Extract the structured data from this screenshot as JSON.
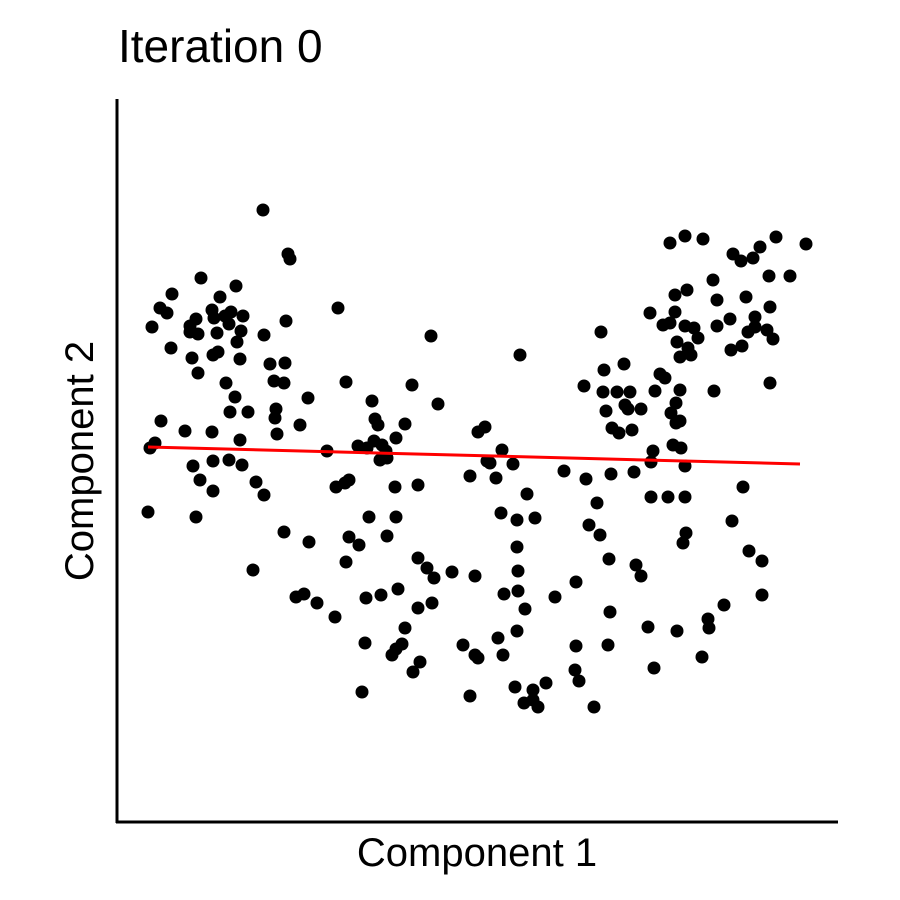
{
  "chart_data": {
    "type": "scatter",
    "title": "Iteration 0",
    "x_label": "Component 1",
    "y_label": "Component 2",
    "xlim": [
      0,
      720
    ],
    "ylim": [
      0,
      722
    ],
    "series": [
      {
        "type": "scatter",
        "color": "#000000",
        "x": [
          146,
          171,
          173,
          84,
          119,
          55,
          43,
          50,
          103,
          35,
          73,
          79,
          97,
          108,
          114,
          126,
          112,
          124,
          81,
          73,
          100,
          120,
          147,
          169,
          54,
          75,
          96,
          101,
          123,
          153,
          168,
          81,
          109,
          157,
          167,
          118,
          191,
          44,
          68,
          113,
          131,
          159,
          158,
          183,
          38,
          95,
          123,
          160,
          76,
          96,
          112,
          125,
          83,
          96,
          139,
          147,
          31,
          79,
          136,
          167,
          192,
          179,
          187,
          200,
          218,
          221,
          229,
          314,
          295,
          321,
          255,
          258,
          261,
          288,
          210,
          241,
          250,
          265,
          257,
          269,
          279,
          263,
          270,
          219,
          228,
          232,
          278,
          301,
          252,
          279,
          232,
          242,
          270,
          229,
          301,
          310,
          317,
          335,
          358,
          249,
          264,
          281,
          301,
          315,
          248,
          288,
          275,
          279,
          285,
          296,
          303,
          245,
          346,
          358,
          361,
          381,
          353,
          400,
          386,
          403,
          361,
          368,
          385,
          370,
          373,
          353,
          379,
          396,
          410,
          384,
          400,
          418,
          400,
          401,
          387,
          401,
          438,
          459,
          408,
          398,
          429,
          416,
          407,
          421,
          416,
          458,
          462,
          477,
          459,
          493,
          491,
          447,
          469,
          480,
          472,
          483,
          492,
          519,
          524,
          531,
          537,
          560,
          585,
          592,
          591,
          607,
          645,
          645,
          632,
          615,
          626,
          566,
          569,
          568,
          551,
          534,
          517,
          494,
          534,
          536,
          568,
          564,
          556,
          559,
          563,
          554,
          559,
          563,
          543,
          548,
          538,
          524,
          511,
          515,
          502,
          495,
          489,
          508,
          500,
          513,
          486,
          487,
          507,
          467,
          484,
          597,
          653,
          656,
          650,
          638,
          631,
          625,
          614,
          600,
          613,
          638,
          653,
          629,
          600,
          596,
          577,
          568,
          553,
          546,
          560,
          563,
          571,
          574,
          581,
          558,
          533,
          558,
          570,
          652,
          673,
          616,
          624,
          636,
          643,
          659,
          689,
          553,
          568,
          586,
          33,
          95
        ],
        "y": [
          612,
          568,
          563,
          544,
          536,
          528,
          514,
          509,
          525,
          495,
          496,
          503,
          504,
          506,
          510,
          506,
          498,
          491,
          488,
          490,
          489,
          480,
          487,
          501,
          474,
          464,
          467,
          470,
          463,
          458,
          459,
          449,
          439,
          441,
          439,
          425,
          424,
          401,
          391,
          410,
          410,
          413,
          404,
          397,
          379,
          390,
          382,
          388,
          356,
          361,
          362,
          357,
          342,
          331,
          340,
          327,
          310,
          305,
          252,
          290,
          280,
          225,
          228,
          219,
          205,
          514,
          440,
          486,
          437,
          418,
          421,
          403,
          397,
          398,
          371,
          376,
          374,
          377,
          381,
          371,
          384,
          362,
          364,
          335,
          339,
          342,
          335,
          337,
          305,
          305,
          285,
          277,
          286,
          260,
          264,
          254,
          244,
          250,
          246,
          224,
          227,
          233,
          214,
          219,
          179,
          194,
          167,
          173,
          178,
          150,
          160,
          130,
          177,
          167,
          164,
          184,
          126,
          191,
          167,
          467,
          390,
          395,
          372,
          361,
          359,
          346,
          344,
          358,
          328,
          309,
          302,
          304,
          275,
          251,
          228,
          231,
          225,
          240,
          213,
          135,
          139,
          132,
          119,
          115,
          122,
          152,
          141,
          115,
          176,
          210,
          177,
          351,
          343,
          319,
          297,
          287,
          263,
          257,
          246,
          195,
          154,
          191,
          165,
          194,
          203,
          217,
          227,
          261,
          271,
          301,
          335,
          279,
          289,
          325,
          325,
          325,
          350,
          348,
          360,
          371,
          356,
          374,
          377,
          399,
          401,
          409,
          419,
          432,
          448,
          444,
          431,
          413,
          413,
          392,
          389,
          394,
          411,
          417,
          430,
          430,
          430,
          452,
          458,
          436,
          490,
          431,
          439,
          483,
          492,
          495,
          490,
          476,
          472,
          496,
          503,
          505,
          515,
          525,
          522,
          542,
          494,
          496,
          499,
          497,
          480,
          465,
          474,
          467,
          484,
          510,
          509,
          527,
          532,
          546,
          546,
          568,
          561,
          564,
          575,
          585,
          578,
          579,
          586,
          583,
          374,
          512
        ]
      },
      {
        "type": "line",
        "color": "#ff0000",
        "x": [
          31,
          683
        ],
        "y": [
          375,
          358
        ]
      }
    ]
  }
}
